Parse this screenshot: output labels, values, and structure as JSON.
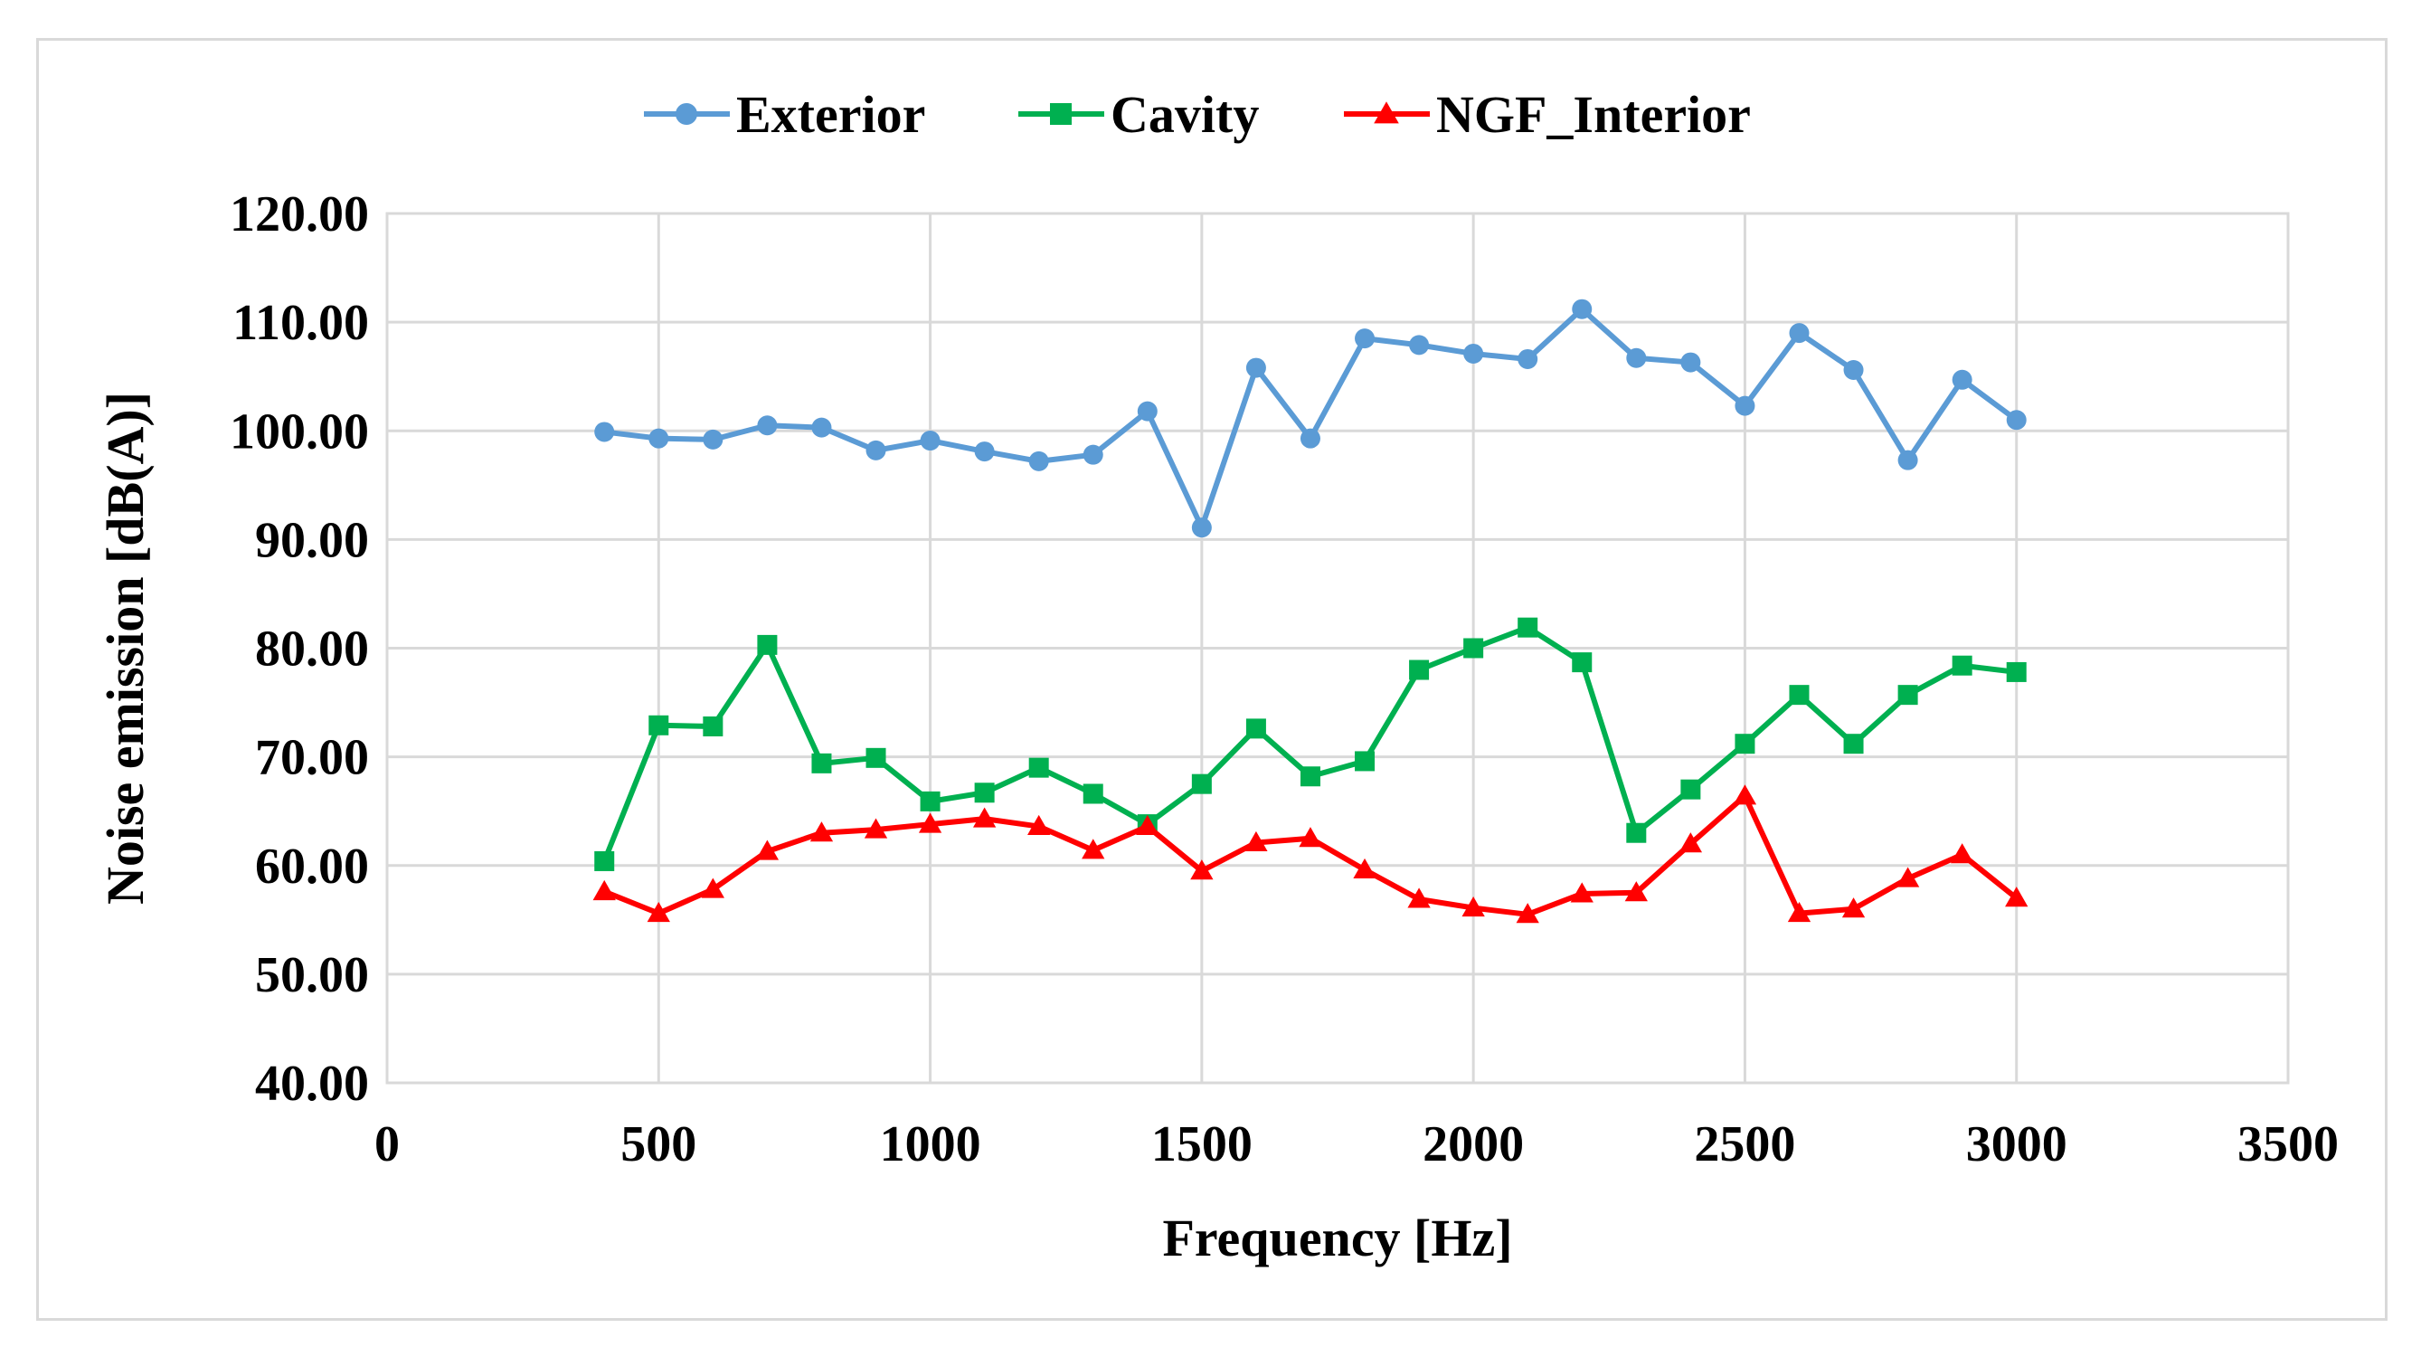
{
  "chart_data": {
    "type": "line",
    "title": "",
    "xlabel": "Frequency [Hz]",
    "ylabel": "Noise emission [dB(A)]",
    "xlim": [
      0,
      3500
    ],
    "ylim": [
      40,
      120
    ],
    "x_ticks": [
      0,
      500,
      1000,
      1500,
      2000,
      2500,
      3000,
      3500
    ],
    "x_tick_labels": [
      "0",
      "500",
      "1000",
      "1500",
      "2000",
      "2500",
      "3000",
      "3500"
    ],
    "y_ticks": [
      40,
      50,
      60,
      70,
      80,
      90,
      100,
      110,
      120
    ],
    "y_tick_labels": [
      "40.00",
      "50.00",
      "60.00",
      "70.00",
      "80.00",
      "90.00",
      "100.00",
      "110.00",
      "120.00"
    ],
    "grid": true,
    "legend_position": "top",
    "x": [
      400,
      500,
      600,
      700,
      800,
      900,
      1000,
      1100,
      1200,
      1300,
      1400,
      1500,
      1600,
      1700,
      1800,
      1900,
      2000,
      2100,
      2200,
      2300,
      2400,
      2500,
      2600,
      2700,
      2800,
      2900,
      3000
    ],
    "series": [
      {
        "name": "Exterior",
        "color": "#5b9bd5",
        "marker": "circle",
        "values": [
          99.9,
          99.3,
          99.2,
          100.5,
          100.3,
          98.2,
          99.1,
          98.1,
          97.2,
          97.8,
          101.8,
          91.1,
          105.8,
          99.3,
          108.5,
          107.9,
          107.1,
          106.6,
          111.2,
          106.7,
          106.3,
          102.3,
          109.0,
          105.6,
          97.3,
          104.7,
          101.0
        ]
      },
      {
        "name": "Cavity",
        "color": "#00b050",
        "marker": "square",
        "values": [
          60.4,
          72.9,
          72.8,
          80.3,
          69.4,
          69.9,
          65.9,
          66.7,
          69.0,
          66.6,
          63.8,
          67.5,
          72.6,
          68.2,
          69.6,
          78.0,
          80.0,
          81.9,
          78.7,
          63.0,
          67.0,
          71.2,
          75.7,
          71.2,
          75.7,
          78.4,
          77.8
        ]
      },
      {
        "name": "NGF_Interior",
        "color": "#ff0000",
        "marker": "triangle",
        "values": [
          57.6,
          55.6,
          57.8,
          61.3,
          63.0,
          63.3,
          63.8,
          64.3,
          63.6,
          61.4,
          63.6,
          59.5,
          62.1,
          62.5,
          59.6,
          56.9,
          56.1,
          55.5,
          57.4,
          57.5,
          62.0,
          66.4,
          55.6,
          56.0,
          58.8,
          61.0,
          57.0
        ]
      }
    ]
  }
}
